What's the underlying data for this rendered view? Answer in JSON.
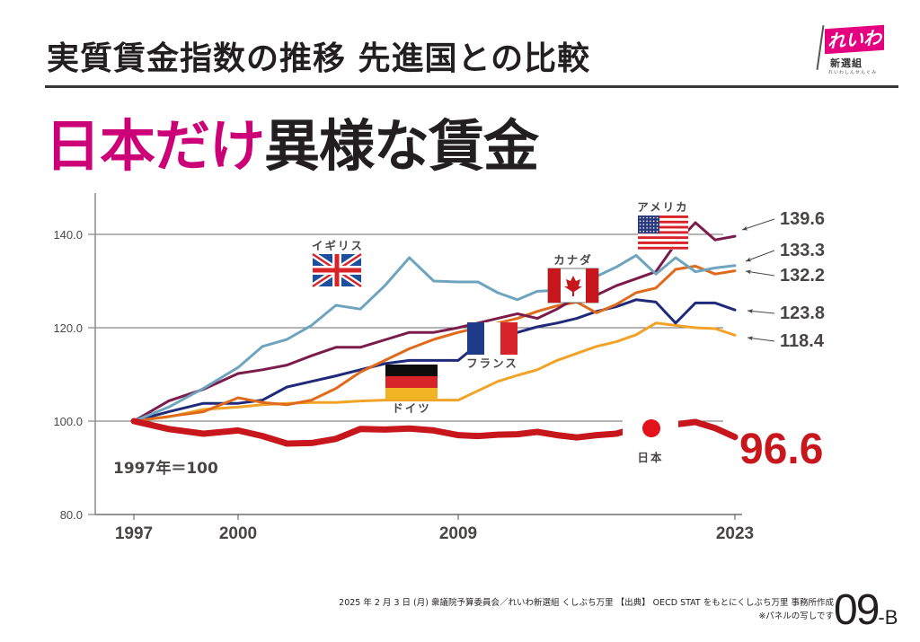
{
  "header": {
    "subtitle": "実質賃金指数の推移 先進国との比較",
    "headline_highlight": "日本だけ",
    "headline_rest": "異様な賃金"
  },
  "logo": {
    "flag_text": "れいわ",
    "party_name": "新選組",
    "tagline": "れいわしんせんぐみ"
  },
  "colors": {
    "accent_pink": "#cc0077",
    "japan": "#c8161d",
    "usa": "#7b1c4c",
    "uk": "#6ea4bd",
    "canada": "#e06a1c",
    "france": "#1f2a7a",
    "germany": "#f0a326"
  },
  "chart_data": {
    "type": "line",
    "title": "実質賃金指数の推移 先進国との比較",
    "xlabel": "",
    "ylabel": "",
    "base_note": "1997年＝100",
    "ylim": [
      80,
      145
    ],
    "yticks": [
      "80.0",
      "100.0",
      "120.0",
      "140.0"
    ],
    "ytick_values": [
      80,
      100,
      120,
      140
    ],
    "xticks": [
      "1997",
      "2000",
      "2009",
      "2023"
    ],
    "xtick_values": [
      1997,
      2000,
      2009,
      2023
    ],
    "grid": "horizontal",
    "x": [
      1997,
      1998,
      1999,
      2000,
      2001,
      2002,
      2003,
      2004,
      2005,
      2006,
      2007,
      2008,
      2009,
      2010,
      2011,
      2012,
      2013,
      2014,
      2015,
      2016,
      2017,
      2018,
      2019,
      2020,
      2021,
      2022,
      2023
    ],
    "series": [
      {
        "name": "アメリカ",
        "key": "usa",
        "label": "アメリカ",
        "values": [
          100,
          104.3,
          106.8,
          110.2,
          111.0,
          112.0,
          114.0,
          115.8,
          115.8,
          117.4,
          119.0,
          119.0,
          120.0,
          121.0,
          122.0,
          123.0,
          122.0,
          124.0,
          126.5,
          127.0,
          129.0,
          130.5,
          132.0,
          138.0,
          142.5,
          138.8,
          139.6
        ]
      },
      {
        "name": "イギリス",
        "key": "uk",
        "label": "イギリス",
        "values": [
          100,
          103.0,
          107.0,
          111.5,
          116.0,
          117.5,
          120.5,
          124.8,
          124.0,
          129.0,
          135.0,
          130.0,
          129.8,
          129.8,
          127.5,
          126.0,
          127.8,
          128.0,
          130.0,
          131.0,
          133.0,
          135.5,
          131.5,
          135.0,
          132.0,
          132.8,
          133.3
        ]
      },
      {
        "name": "カナダ",
        "key": "canada",
        "label": "カナダ",
        "values": [
          100,
          101.0,
          102.0,
          105.0,
          104.0,
          103.5,
          104.5,
          107.0,
          110.5,
          113.0,
          115.5,
          117.5,
          119.0,
          120.0,
          121.0,
          122.0,
          123.5,
          124.7,
          125.5,
          123.2,
          125.0,
          127.5,
          128.5,
          132.5,
          133.2,
          131.5,
          132.2
        ]
      },
      {
        "name": "フランス",
        "key": "france",
        "label": "フランス",
        "values": [
          100,
          102.0,
          103.8,
          103.8,
          104.5,
          107.3,
          108.5,
          109.7,
          111.0,
          112.3,
          113.0,
          113.0,
          113.0,
          116.5,
          119.0,
          119.0,
          120.2,
          121.0,
          122.0,
          123.5,
          124.5,
          126.0,
          125.5,
          121.0,
          125.3,
          125.3,
          123.8
        ]
      },
      {
        "name": "ドイツ",
        "key": "germany",
        "label": "ドイツ",
        "values": [
          100,
          100.9,
          102.5,
          103.0,
          103.5,
          103.8,
          104.0,
          104.0,
          104.3,
          104.5,
          104.5,
          104.5,
          104.5,
          106.5,
          108.5,
          109.8,
          111.0,
          113.0,
          114.5,
          116.0,
          117.0,
          118.5,
          121.0,
          120.5,
          120.0,
          119.8,
          118.4
        ]
      },
      {
        "name": "日本",
        "key": "japan",
        "label": "日本",
        "values": [
          100,
          98.3,
          97.3,
          98.0,
          96.8,
          95.2,
          95.3,
          96.2,
          98.3,
          98.2,
          98.4,
          98.0,
          97.0,
          96.8,
          97.1,
          97.2,
          97.7,
          97.0,
          96.5,
          97.0,
          97.3,
          98.5,
          99.0,
          99.3,
          99.8,
          98.5,
          96.6
        ]
      }
    ],
    "end_labels": [
      {
        "series": "usa",
        "text": "139.6"
      },
      {
        "series": "uk",
        "text": "133.3"
      },
      {
        "series": "canada",
        "text": "132.2"
      },
      {
        "series": "france",
        "text": "123.8"
      },
      {
        "series": "germany",
        "text": "118.4"
      },
      {
        "series": "japan",
        "text": "96.6"
      }
    ],
    "legend": "inline flags near lines"
  },
  "footer": {
    "source_line": "2025 年 2 月 3 日 (月) 衆議院予算委員会／れいわ新選組 くしぶち万里 【出典】 OECD STAT をもとにくしぶち万里 事務所作成",
    "note": "※パネルの写しです",
    "page_number": "09",
    "page_suffix": "-B"
  }
}
